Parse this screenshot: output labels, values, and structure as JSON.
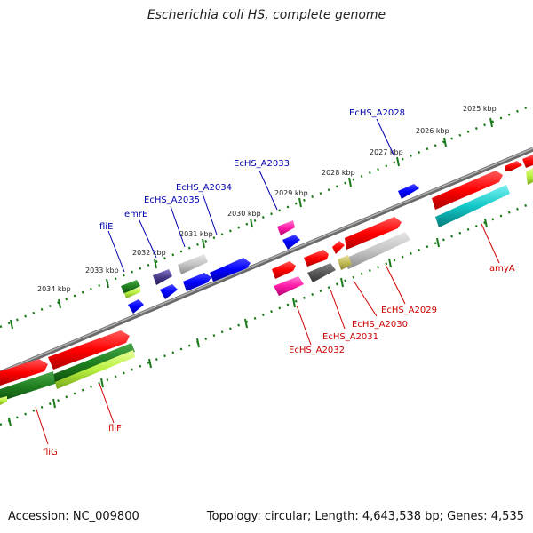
{
  "title": "Escherichia coli HS, complete genome",
  "footer": {
    "accession": "Accession: NC_009800",
    "summary": "Topology: circular; Length: 4,643,538 bp; Genes: 4,535"
  },
  "colors": {
    "backbone": "#808080",
    "tick": "#1a7a1a",
    "label_top": "#0000aa",
    "label_bottom": "#cc0000"
  },
  "ticks": [
    {
      "label": "2025 kbp",
      "kbp": 2025
    },
    {
      "label": "2026 kbp",
      "kbp": 2026
    },
    {
      "label": "2027 kbp",
      "kbp": 2027
    },
    {
      "label": "2028 kbp",
      "kbp": 2028
    },
    {
      "label": "2029 kbp",
      "kbp": 2029
    },
    {
      "label": "2030 kbp",
      "kbp": 2030
    },
    {
      "label": "2031 kbp",
      "kbp": 2031
    },
    {
      "label": "2032 kbp",
      "kbp": 2032
    },
    {
      "label": "2033 kbp",
      "kbp": 2033
    },
    {
      "label": "2034 kbp",
      "kbp": 2034
    }
  ],
  "genes_top": [
    {
      "label": "EcHS_A2028"
    },
    {
      "label": "EcHS_A2033"
    },
    {
      "label": "EcHS_A2034"
    },
    {
      "label": "EcHS_A2035"
    },
    {
      "label": "emrE"
    },
    {
      "label": "fliE"
    }
  ],
  "genes_bottom": [
    {
      "label": "amyA"
    },
    {
      "label": "EcHS_A2029"
    },
    {
      "label": "EcHS_A2030"
    },
    {
      "label": "EcHS_A2031"
    },
    {
      "label": "EcHS_A2032"
    },
    {
      "label": "fliF"
    },
    {
      "label": "fliG"
    }
  ]
}
